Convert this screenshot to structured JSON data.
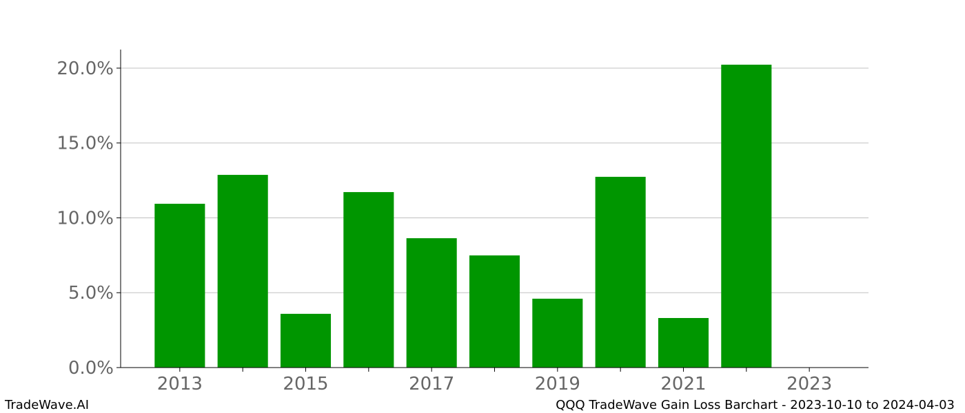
{
  "chart_data": {
    "type": "bar",
    "x": [
      2013,
      2014,
      2015,
      2016,
      2017,
      2018,
      2019,
      2020,
      2021,
      2022,
      2023
    ],
    "values": [
      10.94,
      12.87,
      3.59,
      11.72,
      8.64,
      7.49,
      4.6,
      12.74,
      3.31,
      20.23,
      0
    ],
    "color": "#009600",
    "xlim": [
      2012.06,
      2023.94
    ],
    "xticks": [
      2013,
      2015,
      2017,
      2019,
      2021,
      2023
    ],
    "xminorticks": [
      2014,
      2016,
      2018,
      2020,
      2022
    ],
    "ylim": [
      0,
      21.24
    ],
    "yticks": [
      {
        "value": 0,
        "label": "0.0%"
      },
      {
        "value": 5,
        "label": "5.0%"
      },
      {
        "value": 10,
        "label": "10.0%"
      },
      {
        "value": 15,
        "label": "15.0%"
      },
      {
        "value": 20,
        "label": "20.0%"
      }
    ],
    "grid": true
  },
  "footer": {
    "left": "TradeWave.AI",
    "right": "QQQ TradeWave Gain Loss Barchart - 2023-10-10 to 2024-04-03"
  }
}
